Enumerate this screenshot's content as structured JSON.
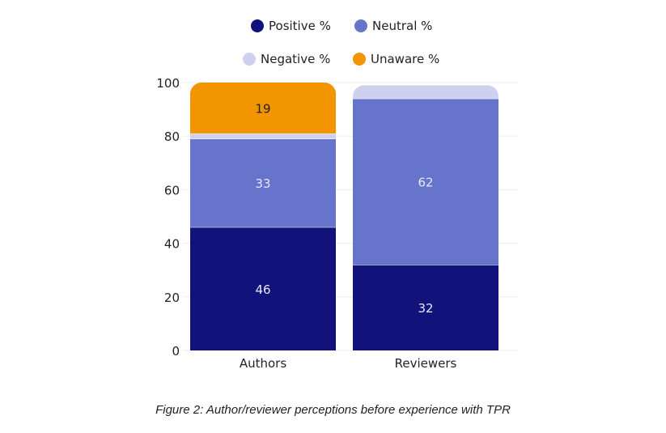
{
  "chart_data": {
    "type": "bar",
    "stacked": true,
    "title": "",
    "xlabel": "",
    "ylabel": "",
    "categories": [
      "Authors",
      "Reviewers"
    ],
    "series": [
      {
        "name": "Positive %",
        "color": "#11137a",
        "values": [
          46,
          32
        ],
        "labels": [
          "46",
          "32"
        ]
      },
      {
        "name": "Neutral %",
        "color": "#6774cc",
        "values": [
          33,
          62
        ],
        "labels": [
          "33",
          "62"
        ]
      },
      {
        "name": "Negative %",
        "color": "#cdd1ee",
        "values": [
          2,
          5
        ],
        "labels": [
          "",
          ""
        ]
      },
      {
        "name": "Unaware %",
        "color": "#f29500",
        "values": [
          19,
          0
        ],
        "labels": [
          "19",
          ""
        ]
      }
    ],
    "ylim": [
      0,
      100
    ],
    "yticks": [
      0,
      20,
      40,
      60,
      80,
      100
    ],
    "grid": true,
    "legend_position": "top"
  },
  "caption": "Figure 2: Author/reviewer perceptions before experience with TPR"
}
